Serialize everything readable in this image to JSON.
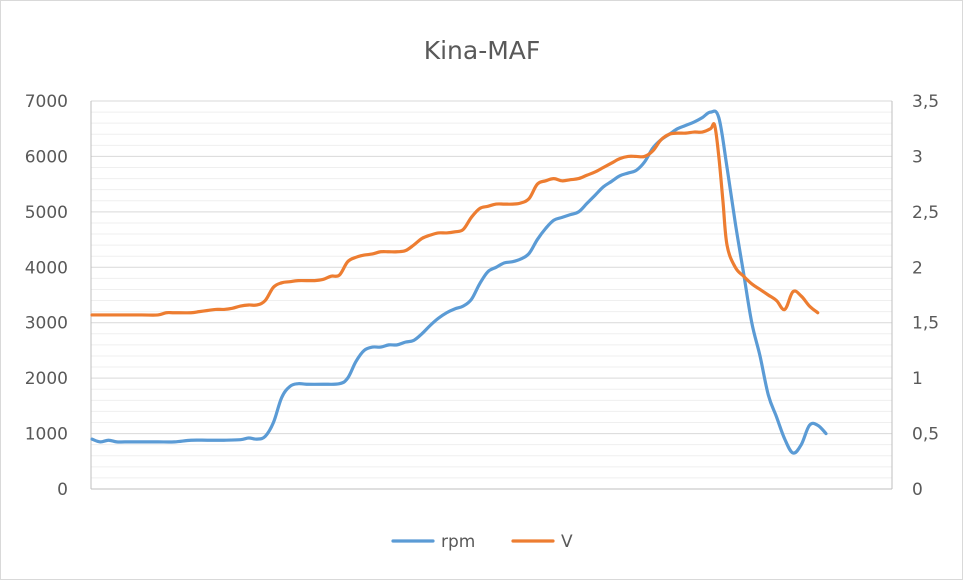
{
  "chart_data": {
    "type": "line",
    "title": "Kina-MAF",
    "y_left": {
      "min": 0,
      "max": 7000,
      "ticks": [
        "0",
        "1000",
        "2000",
        "3000",
        "4000",
        "5000",
        "6000",
        "7000"
      ]
    },
    "y_right": {
      "min": 0,
      "max": 3.5,
      "ticks": [
        "0",
        "0,5",
        "1",
        "1,5",
        "2",
        "2,5",
        "3",
        "3,5"
      ]
    },
    "grid": true,
    "legend_position": "bottom",
    "series": [
      {
        "name": "rpm",
        "axis": "left",
        "color": "#5b9bd5",
        "points": [
          [
            0,
            900
          ],
          [
            1,
            850
          ],
          [
            2,
            880
          ],
          [
            3,
            850
          ],
          [
            4,
            850
          ],
          [
            6,
            850
          ],
          [
            8,
            850
          ],
          [
            10,
            850
          ],
          [
            12,
            880
          ],
          [
            14,
            880
          ],
          [
            16,
            880
          ],
          [
            18,
            890
          ],
          [
            19,
            920
          ],
          [
            20,
            900
          ],
          [
            21,
            950
          ],
          [
            22,
            1200
          ],
          [
            23,
            1650
          ],
          [
            24,
            1850
          ],
          [
            25,
            1900
          ],
          [
            26,
            1890
          ],
          [
            28,
            1890
          ],
          [
            30,
            1900
          ],
          [
            31,
            2000
          ],
          [
            32,
            2300
          ],
          [
            33,
            2500
          ],
          [
            34,
            2560
          ],
          [
            35,
            2560
          ],
          [
            36,
            2600
          ],
          [
            37,
            2600
          ],
          [
            38,
            2650
          ],
          [
            39,
            2680
          ],
          [
            40,
            2800
          ],
          [
            41,
            2950
          ],
          [
            42,
            3080
          ],
          [
            43,
            3180
          ],
          [
            44,
            3250
          ],
          [
            45,
            3300
          ],
          [
            46,
            3420
          ],
          [
            47,
            3700
          ],
          [
            48,
            3920
          ],
          [
            49,
            4000
          ],
          [
            50,
            4080
          ],
          [
            51,
            4100
          ],
          [
            52,
            4150
          ],
          [
            53,
            4250
          ],
          [
            54,
            4500
          ],
          [
            55,
            4700
          ],
          [
            56,
            4850
          ],
          [
            57,
            4900
          ],
          [
            58,
            4950
          ],
          [
            59,
            5000
          ],
          [
            60,
            5150
          ],
          [
            61,
            5300
          ],
          [
            62,
            5450
          ],
          [
            63,
            5550
          ],
          [
            64,
            5650
          ],
          [
            65,
            5700
          ],
          [
            66,
            5750
          ],
          [
            67,
            5900
          ],
          [
            68,
            6150
          ],
          [
            69,
            6300
          ],
          [
            70,
            6400
          ],
          [
            71,
            6500
          ],
          [
            72,
            6560
          ],
          [
            73,
            6620
          ],
          [
            74,
            6700
          ],
          [
            75,
            6800
          ],
          [
            76,
            6700
          ],
          [
            77,
            5800
          ],
          [
            78,
            4800
          ],
          [
            79,
            3900
          ],
          [
            80,
            3000
          ],
          [
            81,
            2400
          ],
          [
            82,
            1700
          ],
          [
            83,
            1300
          ],
          [
            84,
            900
          ],
          [
            85,
            650
          ],
          [
            86,
            800
          ],
          [
            87,
            1150
          ],
          [
            88,
            1150
          ],
          [
            89,
            1000
          ]
        ]
      },
      {
        "name": "V",
        "axis": "right",
        "color": "#ed7d31",
        "points": [
          [
            0,
            1.57
          ],
          [
            3,
            1.57
          ],
          [
            6,
            1.57
          ],
          [
            8,
            1.57
          ],
          [
            9,
            1.59
          ],
          [
            10,
            1.59
          ],
          [
            12,
            1.59
          ],
          [
            13,
            1.6
          ],
          [
            14,
            1.61
          ],
          [
            15,
            1.62
          ],
          [
            16,
            1.62
          ],
          [
            17,
            1.63
          ],
          [
            18,
            1.65
          ],
          [
            19,
            1.66
          ],
          [
            20,
            1.66
          ],
          [
            21,
            1.7
          ],
          [
            22,
            1.82
          ],
          [
            23,
            1.86
          ],
          [
            24,
            1.87
          ],
          [
            25,
            1.88
          ],
          [
            27,
            1.88
          ],
          [
            28,
            1.89
          ],
          [
            29,
            1.92
          ],
          [
            30,
            1.93
          ],
          [
            31,
            2.05
          ],
          [
            32,
            2.09
          ],
          [
            33,
            2.11
          ],
          [
            34,
            2.12
          ],
          [
            35,
            2.14
          ],
          [
            36,
            2.14
          ],
          [
            37,
            2.14
          ],
          [
            38,
            2.15
          ],
          [
            39,
            2.2
          ],
          [
            40,
            2.26
          ],
          [
            41,
            2.29
          ],
          [
            42,
            2.31
          ],
          [
            43,
            2.31
          ],
          [
            44,
            2.32
          ],
          [
            45,
            2.34
          ],
          [
            46,
            2.45
          ],
          [
            47,
            2.53
          ],
          [
            48,
            2.55
          ],
          [
            49,
            2.57
          ],
          [
            50,
            2.57
          ],
          [
            51,
            2.57
          ],
          [
            52,
            2.58
          ],
          [
            53,
            2.62
          ],
          [
            54,
            2.75
          ],
          [
            55,
            2.78
          ],
          [
            56,
            2.8
          ],
          [
            57,
            2.78
          ],
          [
            58,
            2.79
          ],
          [
            59,
            2.8
          ],
          [
            60,
            2.83
          ],
          [
            61,
            2.86
          ],
          [
            62,
            2.9
          ],
          [
            63,
            2.94
          ],
          [
            64,
            2.98
          ],
          [
            65,
            3.0
          ],
          [
            66,
            3.0
          ],
          [
            67,
            3.0
          ],
          [
            68,
            3.05
          ],
          [
            69,
            3.15
          ],
          [
            70,
            3.2
          ],
          [
            71,
            3.21
          ],
          [
            72,
            3.21
          ],
          [
            73,
            3.22
          ],
          [
            74,
            3.22
          ],
          [
            75,
            3.25
          ],
          [
            75.5,
            3.28
          ],
          [
            76,
            3.0
          ],
          [
            76.5,
            2.6
          ],
          [
            77,
            2.2
          ],
          [
            78,
            2.0
          ],
          [
            79,
            1.92
          ],
          [
            80,
            1.85
          ],
          [
            81,
            1.8
          ],
          [
            82,
            1.75
          ],
          [
            83,
            1.7
          ],
          [
            84,
            1.62
          ],
          [
            85,
            1.78
          ],
          [
            86,
            1.74
          ],
          [
            87,
            1.65
          ],
          [
            88,
            1.59
          ]
        ]
      }
    ]
  }
}
